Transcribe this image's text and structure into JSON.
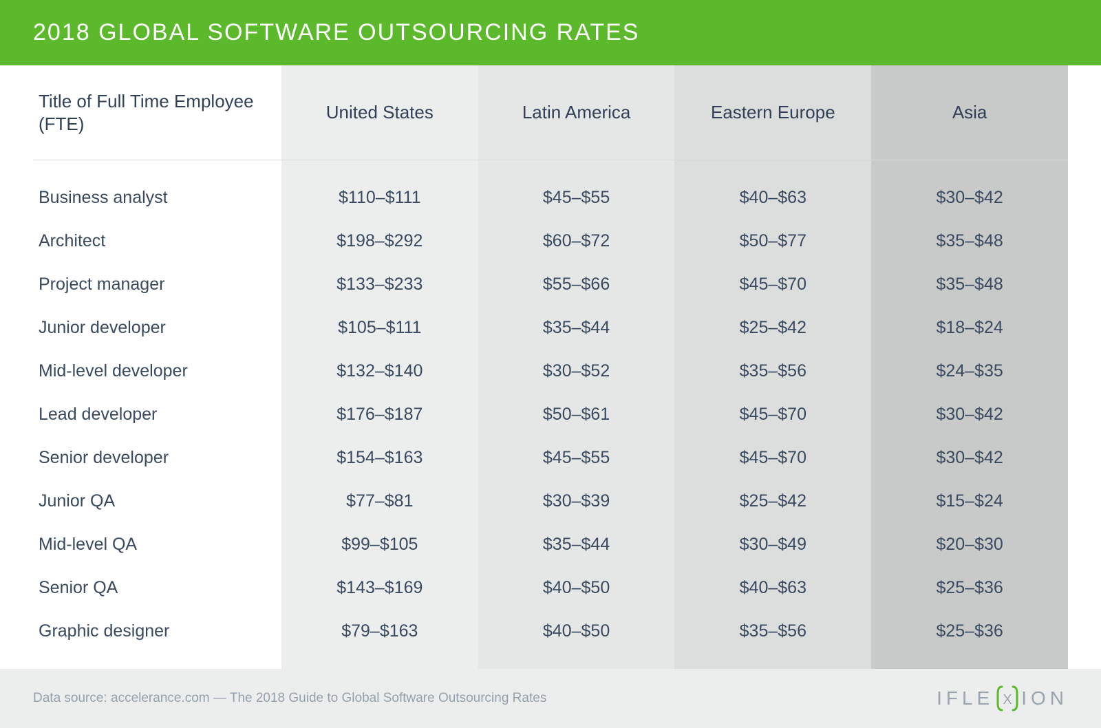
{
  "header": {
    "title": "2018 GLOBAL SOFTWARE OUTSOURCING RATES",
    "bg_color": "#5bb92b",
    "text_color": "#ffffff",
    "divider_color": "#e9ebeb"
  },
  "table": {
    "type": "table",
    "column_header_label": "Title of Full Time Employee (FTE)",
    "columns": [
      "United States",
      "Latin America",
      "Eastern Europe",
      "Asia"
    ],
    "column_bg_colors": [
      "#eceeee",
      "#e5e7e7",
      "#dcdede",
      "#c8caca"
    ],
    "header_border_color": "#d5dade",
    "text_color": "#314055",
    "body_text_color": "#3a4a5e",
    "header_fontsize": 26,
    "cell_fontsize": 25,
    "col_widths": [
      "24%",
      "19%",
      "19%",
      "19%",
      "19%"
    ],
    "rows": [
      {
        "label": "Business analyst",
        "values": [
          "$110–$111",
          "$45–$55",
          "$40–$63",
          "$30–$42"
        ]
      },
      {
        "label": "Architect",
        "values": [
          "$198–$292",
          "$60–$72",
          "$50–$77",
          "$35–$48"
        ]
      },
      {
        "label": "Project manager",
        "values": [
          "$133–$233",
          "$55–$66",
          "$45–$70",
          "$35–$48"
        ]
      },
      {
        "label": "Junior developer",
        "values": [
          "$105–$111",
          "$35–$44",
          "$25–$42",
          "$18–$24"
        ]
      },
      {
        "label": "Mid-level developer",
        "values": [
          "$132–$140",
          "$30–$52",
          "$35–$56",
          "$24–$35"
        ]
      },
      {
        "label": "Lead developer",
        "values": [
          "$176–$187",
          "$50–$61",
          "$45–$70",
          "$30–$42"
        ]
      },
      {
        "label": "Senior developer",
        "values": [
          "$154–$163",
          "$45–$55",
          "$45–$70",
          "$30–$42"
        ]
      },
      {
        "label": "Junior QA",
        "values": [
          "$77–$81",
          "$30–$39",
          "$25–$42",
          "$15–$24"
        ]
      },
      {
        "label": "Mid-level QA",
        "values": [
          "$99–$105",
          "$35–$44",
          "$30–$49",
          "$20–$30"
        ]
      },
      {
        "label": "Senior QA",
        "values": [
          "$143–$169",
          "$40–$50",
          "$40–$63",
          "$25–$36"
        ]
      },
      {
        "label": "Graphic designer",
        "values": [
          "$79–$163",
          "$40–$50",
          "$35–$56",
          "$25–$36"
        ]
      }
    ]
  },
  "footer": {
    "source_text": "Data source: accelerance.com — The 2018 Guide to Global Software Outsourcing Rates",
    "bg_color": "#eceeee",
    "text_color": "#94a0ab",
    "logo": {
      "pre": "IFLE",
      "mid": "X",
      "post": "ION",
      "bracket_color": "#5bb92b",
      "text_color": "#9aa5af"
    }
  }
}
